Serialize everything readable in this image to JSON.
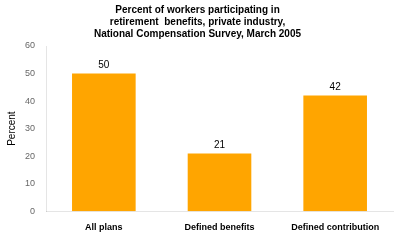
{
  "chart_data": {
    "type": "bar",
    "title": "Percent of workers participating in\nretirement  benefits, private industry,\nNational Compensation Survey, March 2005",
    "ylabel": "Percent",
    "categories": [
      "All plans",
      "Defined benefits",
      "Defined contribution"
    ],
    "values": [
      50,
      21,
      42
    ],
    "color": "#FFA500",
    "ylim": [
      0,
      60
    ],
    "yticks": [
      0,
      10,
      20,
      30,
      40,
      50,
      60
    ],
    "grid": false,
    "data_labels": true
  }
}
